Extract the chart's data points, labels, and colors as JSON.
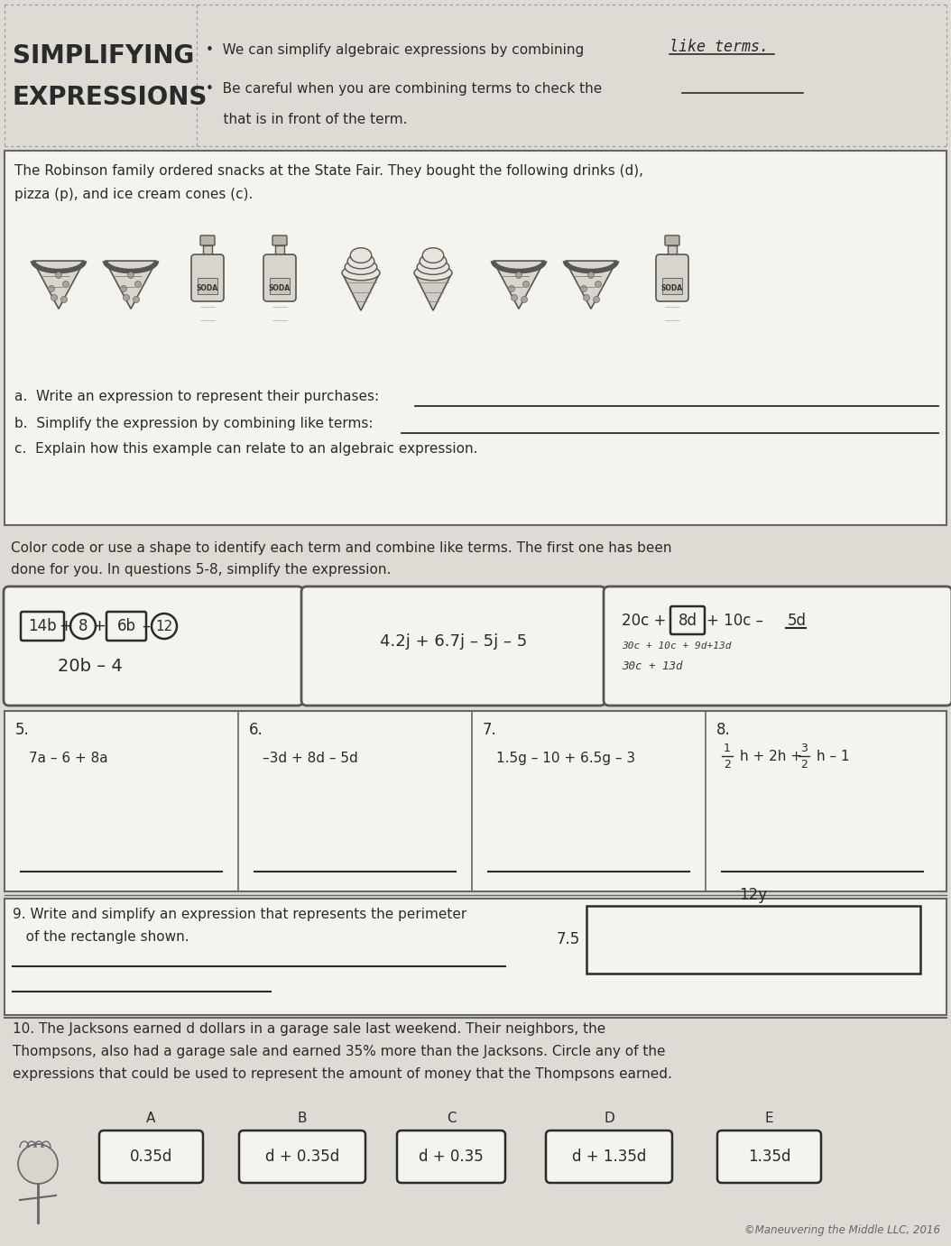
{
  "bg_color": "#dddbd4",
  "white": "#f0eeea",
  "box_white": "#f5f3ef",
  "dark": "#2a2a2a",
  "border_color": "#666666",
  "medium_gray": "#888888",
  "light_gray": "#c8c5bc",
  "title_bg": "#dddbd4",
  "bullet1_pre": "We can simplify algebraic expressions by combining ",
  "bullet1_hand": "like terms.",
  "bullet2": "Be careful when you are combining terms to check the",
  "bullet2_cont": "that is in front of the term.",
  "robinson_text1": "The Robinson family ordered snacks at the State Fair. They bought the following drinks (d),",
  "robinson_text2": "pizza (p), and ice cream cones (c).",
  "q_a": "a.  Write an expression to represent their purchases:",
  "q_b": "b.  Simplify the expression by combining like terms:",
  "q_c": "c.  Explain how this example can relate to an algebraic expression.",
  "color_code_text1": "Color code or use a shape to identify each term and combine like terms. The first one has been",
  "color_code_text2": "done for you. In questions 5-8, simplify the expression.",
  "ex1_answer": "20b – 4",
  "ex2_expr": "4.2j + 6.7j – 5j – 5",
  "q5_num": "5.",
  "q5_expr": "7a – 6 + 8a",
  "q6_num": "6.",
  "q6_expr": "–3d + 8d – 5d",
  "q7_num": "7.",
  "q7_expr": "1.5g – 10 + 6.5g – 3",
  "q8_num": "8.",
  "q8_expr_a": "1",
  "q8_expr_b": "2",
  "q8_expr_c": "h + 2h + ",
  "q8_expr_d": "3",
  "q8_expr_e": "2",
  "q8_expr_f": "h – 1",
  "q9_text1": "9. Write and simplify an expression that represents the perimeter",
  "q9_text2": "   of the rectangle shown.",
  "rect_side": "7.5",
  "rect_top": "12y",
  "q10_text1": "10. The Jacksons earned d dollars in a garage sale last weekend. Their neighbors, the",
  "q10_text2": "Thompsons, also had a garage sale and earned 35% more than the Jacksons. Circle any of the",
  "q10_text3": "expressions that could be used to represent the amount of money that the Thompsons earned.",
  "choices": [
    "A",
    "B",
    "C",
    "D",
    "E"
  ],
  "choice_labels": [
    "0.35d",
    "d + 0.35d",
    "d + 0.35",
    "d + 1.35d",
    "1.35d"
  ],
  "copyright": "©Maneuvering the Middle LLC, 2016"
}
